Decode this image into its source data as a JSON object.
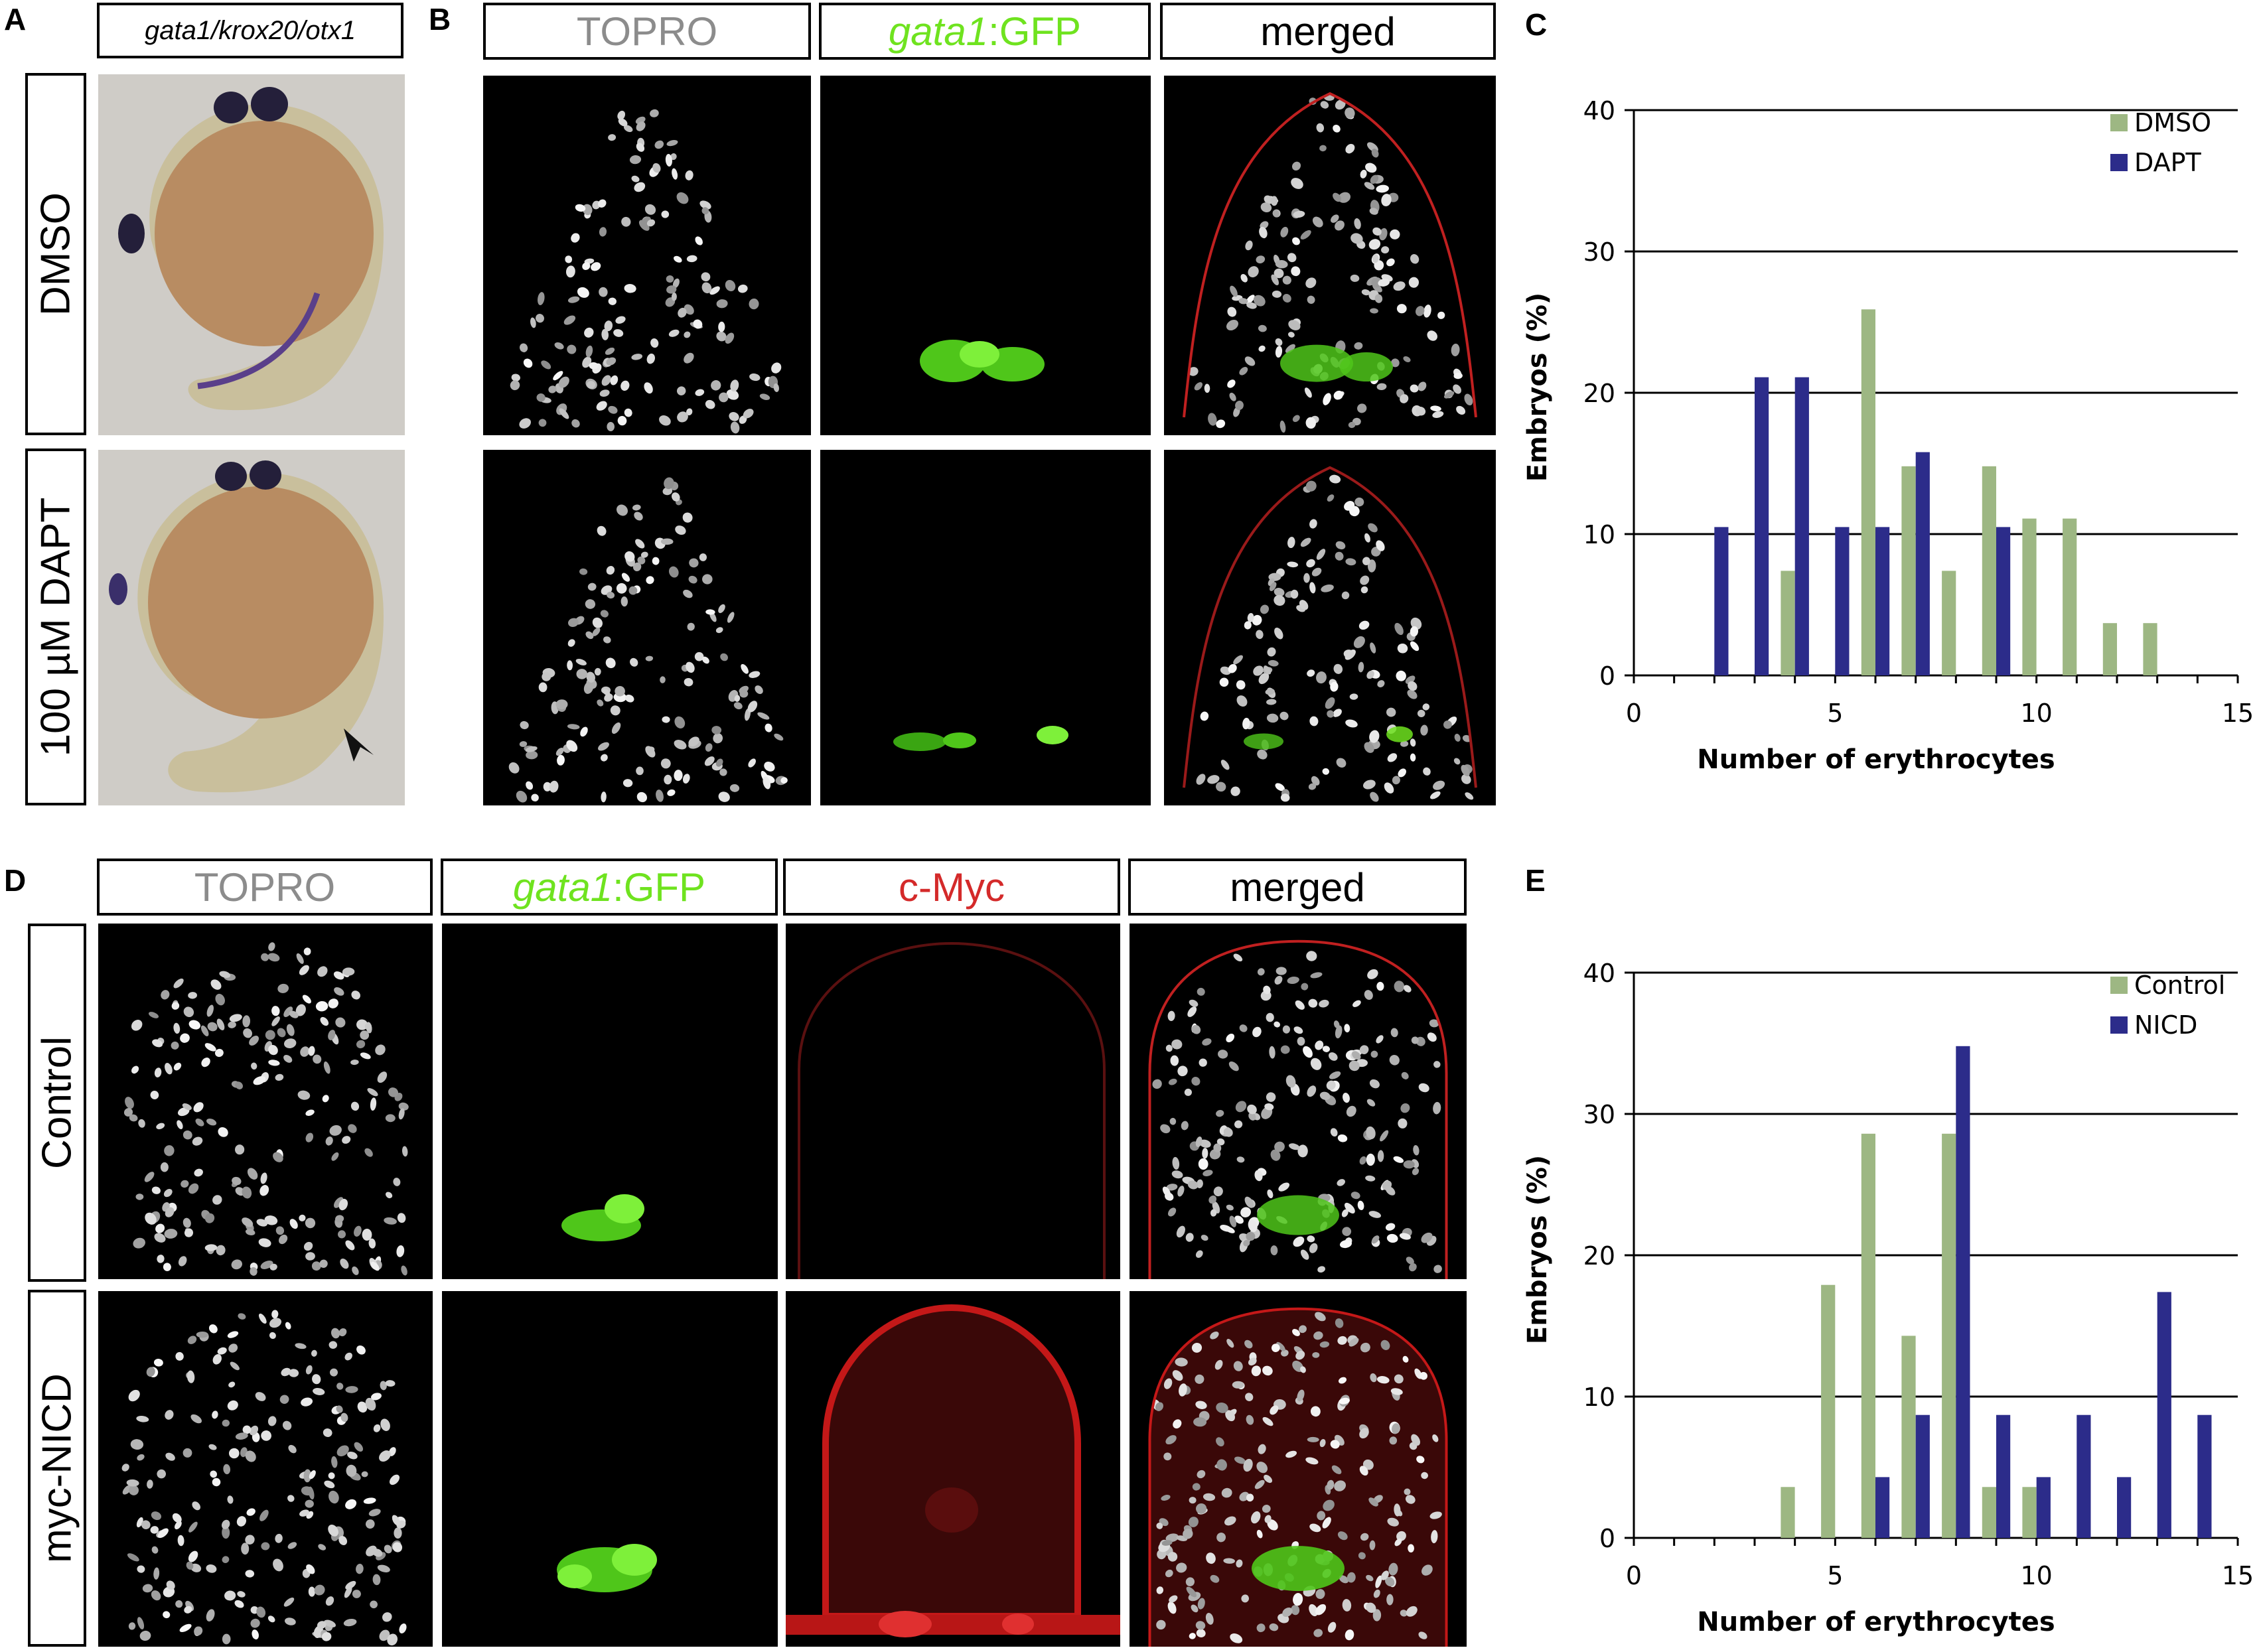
{
  "panel_labels": {
    "a": "A",
    "b": "B",
    "c": "C",
    "d": "D",
    "e": "E"
  },
  "panelA": {
    "header": "gata1/krox20/otx1",
    "rows": [
      "DMSO",
      "100 µM DAPT"
    ]
  },
  "panelB": {
    "headers": {
      "topro": "TOPRO",
      "gfp_gene": "gata1",
      "gfp_suffix": ":GFP",
      "merged": "merged"
    }
  },
  "panelD": {
    "headers": {
      "topro": "TOPRO",
      "gfp_gene": "gata1",
      "gfp_suffix": ":GFP",
      "cmyc": "c-Myc",
      "merged": "merged"
    },
    "rows": [
      "Control",
      "myc-NICD"
    ]
  },
  "colors": {
    "green_bar": "#9db783",
    "blue_bar": "#2c2c8a",
    "gfp_green": "#6fe31f",
    "cmyc_red": "#d42a2a"
  },
  "chart_data": [
    {
      "type": "bar",
      "panel": "C",
      "xlabel": "Number of erythrocytes",
      "ylabel": "Embryos (%)",
      "xlim": [
        0,
        15
      ],
      "ylim": [
        0,
        40
      ],
      "xticks": [
        0,
        5,
        10,
        15
      ],
      "yticks": [
        0,
        10,
        20,
        30,
        40
      ],
      "grid": true,
      "legend_position": "top-right",
      "series": [
        {
          "name": "DMSO",
          "color": "#9db783",
          "points": [
            [
              4,
              7.4
            ],
            [
              6,
              25.9
            ],
            [
              7,
              14.8
            ],
            [
              8,
              7.4
            ],
            [
              9,
              14.8
            ],
            [
              10,
              11.1
            ],
            [
              11,
              11.1
            ],
            [
              12,
              3.7
            ],
            [
              13,
              3.7
            ]
          ]
        },
        {
          "name": "DAPT",
          "color": "#2c2c8a",
          "points": [
            [
              2,
              10.5
            ],
            [
              3,
              21.1
            ],
            [
              4,
              21.1
            ],
            [
              5,
              10.5
            ],
            [
              6,
              10.5
            ],
            [
              7,
              15.8
            ],
            [
              9,
              10.5
            ]
          ]
        }
      ]
    },
    {
      "type": "bar",
      "panel": "E",
      "xlabel": "Number of erythrocytes",
      "ylabel": "Embryos (%)",
      "xlim": [
        0,
        15
      ],
      "ylim": [
        0,
        40
      ],
      "xticks": [
        0,
        5,
        10,
        15
      ],
      "yticks": [
        0,
        10,
        20,
        30,
        40
      ],
      "grid": true,
      "legend_position": "top-right",
      "series": [
        {
          "name": "Control",
          "color": "#9db783",
          "points": [
            [
              4,
              3.6
            ],
            [
              5,
              17.9
            ],
            [
              6,
              28.6
            ],
            [
              7,
              14.3
            ],
            [
              8,
              28.6
            ],
            [
              9,
              3.6
            ],
            [
              10,
              3.6
            ]
          ]
        },
        {
          "name": "NICD",
          "color": "#2c2c8a",
          "points": [
            [
              6,
              4.3
            ],
            [
              7,
              8.7
            ],
            [
              8,
              34.8
            ],
            [
              9,
              8.7
            ],
            [
              10,
              4.3
            ],
            [
              11,
              8.7
            ],
            [
              12,
              4.3
            ],
            [
              13,
              17.4
            ],
            [
              14,
              8.7
            ]
          ]
        }
      ]
    }
  ]
}
